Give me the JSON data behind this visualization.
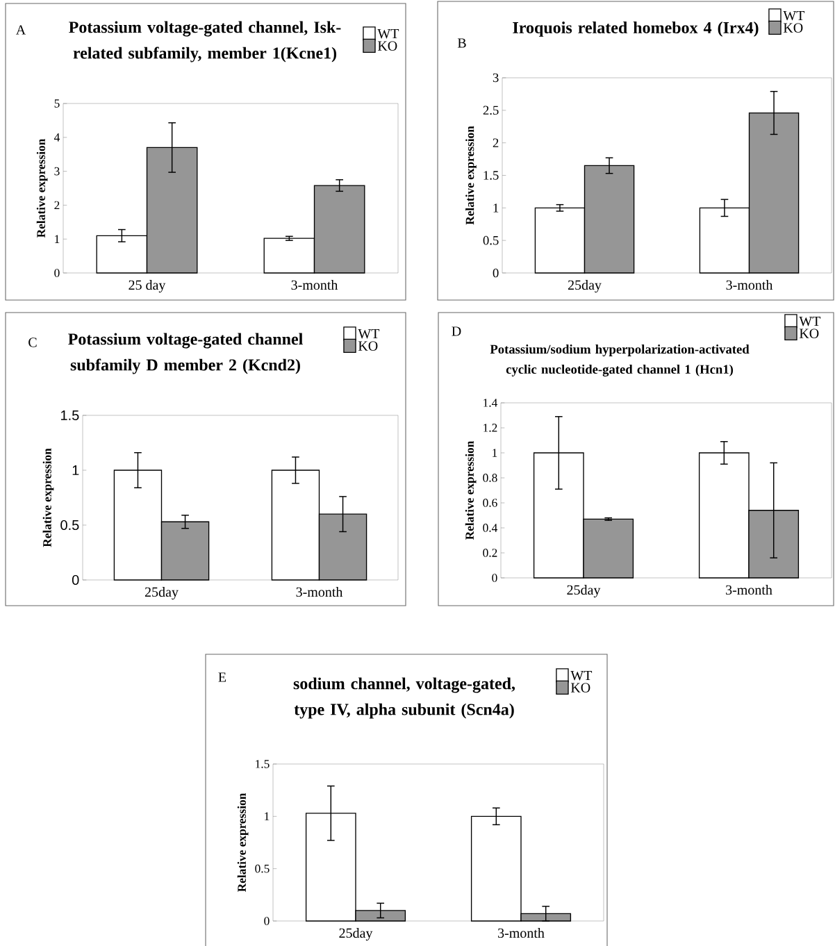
{
  "chart_data": [
    {
      "type": "bar",
      "title": "Potassium voltage-gated channel, Isk-related subfamily, member 1(Kcne1)",
      "ylabel": "Relative expression",
      "categories": [
        "25 day",
        "3-month"
      ],
      "series": [
        {
          "name": "WT",
          "color": "#ffffff",
          "values": [
            1.1,
            1.02
          ],
          "errors": [
            0.18,
            0.06
          ]
        },
        {
          "name": "KO",
          "color": "#969696",
          "values": [
            3.7,
            2.58
          ],
          "errors": [
            0.73,
            0.17
          ]
        }
      ],
      "ylim": [
        0,
        5
      ],
      "yticks": [
        0,
        1,
        2,
        3,
        4,
        5
      ],
      "legend": "top right",
      "annotations": [
        "A"
      ]
    },
    {
      "type": "bar",
      "title": "Iroquois related homebox 4 (Irx4)",
      "ylabel": "Relative expression",
      "categories": [
        "25day",
        "3-month"
      ],
      "series": [
        {
          "name": "WT",
          "color": "#ffffff",
          "values": [
            1.0,
            1.0
          ],
          "errors": [
            0.05,
            0.13
          ]
        },
        {
          "name": "KO",
          "color": "#969696",
          "values": [
            1.65,
            2.46
          ],
          "errors": [
            0.12,
            0.33
          ]
        }
      ],
      "ylim": [
        0,
        3
      ],
      "yticks": [
        0,
        0.5,
        1,
        1.5,
        2,
        2.5,
        3
      ],
      "legend": "top right",
      "annotations": [
        "B"
      ]
    },
    {
      "type": "bar",
      "title": "Potassium voltage-gated channel subfamily D member 2 (Kcnd2)",
      "ylabel": "Relative expression",
      "categories": [
        "25day",
        "3-month"
      ],
      "series": [
        {
          "name": "WT",
          "color": "#ffffff",
          "values": [
            1.0,
            1.0
          ],
          "errors": [
            0.16,
            0.12
          ]
        },
        {
          "name": "KO",
          "color": "#969696",
          "values": [
            0.53,
            0.6
          ],
          "errors": [
            0.06,
            0.16
          ]
        }
      ],
      "ylim": [
        0,
        1.5
      ],
      "yticks": [
        0,
        0.5,
        1,
        1.5
      ],
      "legend": "top right",
      "annotations": [
        "C"
      ]
    },
    {
      "type": "bar",
      "title": "Potassium/sodium hyperpolarization-activated cyclic nucleotide-gated channel 1 (Hcn1)",
      "ylabel": "Relative expression",
      "categories": [
        "25day",
        "3-month"
      ],
      "series": [
        {
          "name": "WT",
          "color": "#ffffff",
          "values": [
            1.0,
            1.0
          ],
          "errors": [
            0.29,
            0.09
          ]
        },
        {
          "name": "KO",
          "color": "#969696",
          "values": [
            0.47,
            0.54
          ],
          "errors": [
            0.01,
            0.38
          ]
        }
      ],
      "ylim": [
        0,
        1.4
      ],
      "yticks": [
        0,
        0.2,
        0.4,
        0.6,
        0.8,
        1,
        1.2,
        1.4
      ],
      "legend": "top right",
      "annotations": [
        "D"
      ]
    },
    {
      "type": "bar",
      "title": "sodium channel, voltage-gated, type IV, alpha subunit (Scn4a)",
      "ylabel": "Relative expression",
      "categories": [
        "25day",
        "3-month"
      ],
      "series": [
        {
          "name": "WT",
          "color": "#ffffff",
          "values": [
            1.03,
            1.0
          ],
          "errors": [
            0.26,
            0.08
          ]
        },
        {
          "name": "KO",
          "color": "#969696",
          "values": [
            0.1,
            0.07
          ],
          "errors": [
            0.07,
            0.07
          ]
        }
      ],
      "ylim": [
        0,
        1.5
      ],
      "yticks": [
        0,
        0.5,
        1,
        1.5
      ],
      "legend": "top right",
      "annotations": [
        "E"
      ]
    }
  ]
}
